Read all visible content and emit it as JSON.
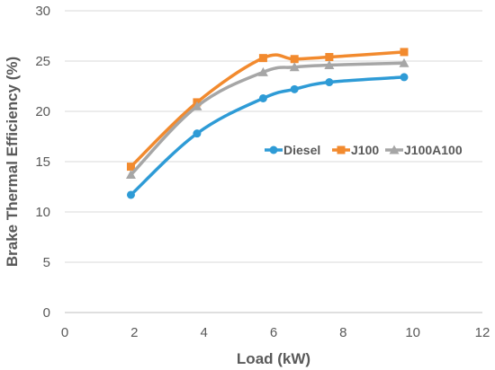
{
  "chart_data": {
    "type": "line",
    "xlabel": "Load (kW)",
    "ylabel": "Brake Thermal Efficiency (%)",
    "xlim": [
      0,
      12
    ],
    "ylim": [
      0,
      30
    ],
    "x_ticks": [
      0,
      2,
      4,
      6,
      8,
      10,
      12
    ],
    "y_ticks": [
      0,
      5,
      10,
      15,
      20,
      25,
      30
    ],
    "grid": "horizontal",
    "legend_position": "center-right",
    "series": [
      {
        "name": "Diesel",
        "color": "#2E9BD6",
        "marker": "circle",
        "x": [
          1.9,
          3.8,
          5.7,
          6.6,
          7.6,
          9.75
        ],
        "y": [
          11.7,
          17.8,
          21.3,
          22.2,
          22.9,
          23.4
        ]
      },
      {
        "name": "J100",
        "color": "#F28A2E",
        "marker": "square",
        "x": [
          1.9,
          3.8,
          5.7,
          6.6,
          7.6,
          9.75
        ],
        "y": [
          14.5,
          20.9,
          25.3,
          25.2,
          25.4,
          25.9
        ]
      },
      {
        "name": "J100A100",
        "color": "#A6A6A6",
        "marker": "triangle",
        "x": [
          1.9,
          3.8,
          5.7,
          6.6,
          7.6,
          9.75
        ],
        "y": [
          13.7,
          20.5,
          23.9,
          24.4,
          24.6,
          24.8
        ]
      }
    ]
  }
}
